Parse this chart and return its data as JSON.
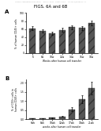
{
  "title": "FIGS. 6A and 6B",
  "header_text": "Human Application Publication     Sep. 1, 2011   Sheet 4 of 8     US 2011/0206671 A1",
  "panel_A": {
    "label": "A",
    "xlabel": "Weeks after human cell transfer",
    "ylabel": "% of human CD45+ cells",
    "x_labels": [
      "6",
      "8w",
      "10w",
      "12w",
      "14w",
      "16w",
      "18w"
    ],
    "values": [
      62,
      55,
      50,
      58,
      65,
      63,
      75
    ],
    "errors": [
      5,
      4,
      4,
      5,
      5,
      5,
      6
    ],
    "bar_color": "#555555",
    "ylim": [
      0,
      100
    ],
    "yticks": [
      0,
      20,
      40,
      60,
      80,
      100
    ]
  },
  "panel_B": {
    "label": "B",
    "xlabel": "weeks after human cell transfer",
    "ylabel": "% of CD3+ cells in\nhuman CD45+ cells",
    "x_labels": [
      "6wk",
      "8wk",
      "10wk",
      "12wk",
      "17wk",
      "19wk",
      "21wk"
    ],
    "values": [
      0.05,
      0.04,
      0.08,
      0.15,
      0.55,
      1.1,
      1.7
    ],
    "errors": [
      0.01,
      0.01,
      0.02,
      0.03,
      0.1,
      0.2,
      0.35
    ],
    "bar_color": "#555555",
    "ylim": [
      0,
      2.2
    ],
    "yticks": [
      0,
      0.5,
      1.0,
      1.5,
      2.0
    ]
  },
  "bg_color": "#ffffff"
}
